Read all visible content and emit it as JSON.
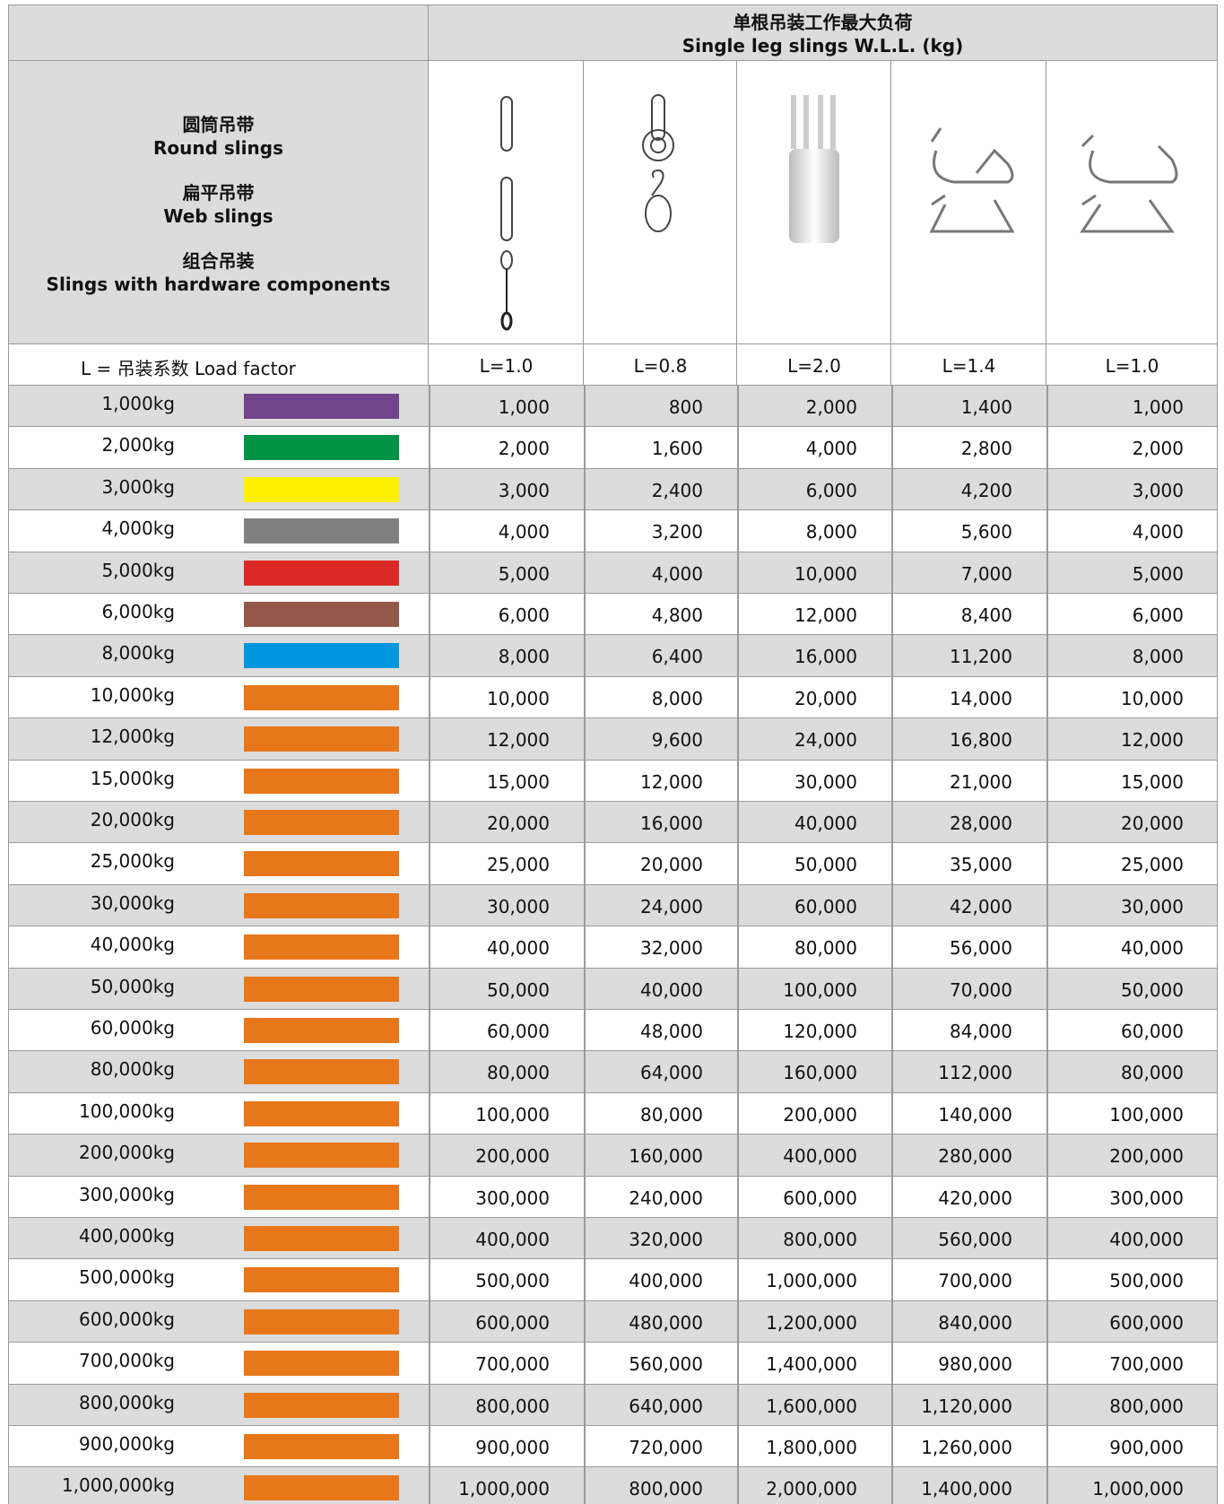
{
  "header": {
    "title_zh": "单根吊装工作最大负荷",
    "title_en": "Single leg slings W.L.L. (kg)"
  },
  "sling_types": [
    {
      "zh": "圆筒吊带",
      "en": "Round slings"
    },
    {
      "zh": "扁平吊带",
      "en": "Web slings"
    },
    {
      "zh": "组合吊装",
      "en": "Slings with hardware components"
    }
  ],
  "load_factor": {
    "label": "L = 吊装系数 Load factor",
    "values": [
      "L=1.0",
      "L=0.8",
      "L=2.0",
      "L=1.4",
      "L=1.0"
    ]
  },
  "rows": [
    {
      "label": "1,000kg",
      "color": "#71448c",
      "values": [
        "1,000",
        "800",
        "2,000",
        "1,400",
        "1,000"
      ]
    },
    {
      "label": "2,000kg",
      "color": "#009245",
      "values": [
        "2,000",
        "1,600",
        "4,000",
        "2,800",
        "2,000"
      ]
    },
    {
      "label": "3,000kg",
      "color": "#fff200",
      "values": [
        "3,000",
        "2,400",
        "6,000",
        "4,200",
        "3,000"
      ]
    },
    {
      "label": "4,000kg",
      "color": "#808080",
      "values": [
        "4,000",
        "3,200",
        "8,000",
        "5,600",
        "4,000"
      ]
    },
    {
      "label": "5,000kg",
      "color": "#db2a25",
      "values": [
        "5,000",
        "4,000",
        "10,000",
        "7,000",
        "5,000"
      ]
    },
    {
      "label": "6,000kg",
      "color": "#94584a",
      "values": [
        "6,000",
        "4,800",
        "12,000",
        "8,400",
        "6,000"
      ]
    },
    {
      "label": "8,000kg",
      "color": "#0096df",
      "values": [
        "8,000",
        "6,400",
        "16,000",
        "11,200",
        "8,000"
      ]
    },
    {
      "label": "10,000kg",
      "color": "#e8771a",
      "values": [
        "10,000",
        "8,000",
        "20,000",
        "14,000",
        "10,000"
      ]
    },
    {
      "label": "12,000kg",
      "color": "#e8771a",
      "values": [
        "12,000",
        "9,600",
        "24,000",
        "16,800",
        "12,000"
      ]
    },
    {
      "label": "15,000kg",
      "color": "#e8771a",
      "values": [
        "15,000",
        "12,000",
        "30,000",
        "21,000",
        "15,000"
      ]
    },
    {
      "label": "20,000kg",
      "color": "#e8771a",
      "values": [
        "20,000",
        "16,000",
        "40,000",
        "28,000",
        "20,000"
      ]
    },
    {
      "label": "25,000kg",
      "color": "#e8771a",
      "values": [
        "25,000",
        "20,000",
        "50,000",
        "35,000",
        "25,000"
      ]
    },
    {
      "label": "30,000kg",
      "color": "#e8771a",
      "values": [
        "30,000",
        "24,000",
        "60,000",
        "42,000",
        "30,000"
      ]
    },
    {
      "label": "40,000kg",
      "color": "#e8771a",
      "values": [
        "40,000",
        "32,000",
        "80,000",
        "56,000",
        "40,000"
      ]
    },
    {
      "label": "50,000kg",
      "color": "#e8771a",
      "values": [
        "50,000",
        "40,000",
        "100,000",
        "70,000",
        "50,000"
      ]
    },
    {
      "label": "60,000kg",
      "color": "#e8771a",
      "values": [
        "60,000",
        "48,000",
        "120,000",
        "84,000",
        "60,000"
      ]
    },
    {
      "label": "80,000kg",
      "color": "#e8771a",
      "values": [
        "80,000",
        "64,000",
        "160,000",
        "112,000",
        "80,000"
      ]
    },
    {
      "label": "100,000kg",
      "color": "#e8771a",
      "values": [
        "100,000",
        "80,000",
        "200,000",
        "140,000",
        "100,000"
      ]
    },
    {
      "label": "200,000kg",
      "color": "#e8771a",
      "values": [
        "200,000",
        "160,000",
        "400,000",
        "280,000",
        "200,000"
      ]
    },
    {
      "label": "300,000kg",
      "color": "#e8771a",
      "values": [
        "300,000",
        "240,000",
        "600,000",
        "420,000",
        "300,000"
      ]
    },
    {
      "label": "400,000kg",
      "color": "#e8771a",
      "values": [
        "400,000",
        "320,000",
        "800,000",
        "560,000",
        "400,000"
      ]
    },
    {
      "label": "500,000kg",
      "color": "#e8771a",
      "values": [
        "500,000",
        "400,000",
        "1,000,000",
        "700,000",
        "500,000"
      ]
    },
    {
      "label": "600,000kg",
      "color": "#e8771a",
      "values": [
        "600,000",
        "480,000",
        "1,200,000",
        "840,000",
        "600,000"
      ]
    },
    {
      "label": "700,000kg",
      "color": "#e8771a",
      "values": [
        "700,000",
        "560,000",
        "1,400,000",
        "980,000",
        "700,000"
      ]
    },
    {
      "label": "800,000kg",
      "color": "#e8771a",
      "values": [
        "800,000",
        "640,000",
        "1,600,000",
        "1,120,000",
        "800,000"
      ]
    },
    {
      "label": "900,000kg",
      "color": "#e8771a",
      "values": [
        "900,000",
        "720,000",
        "1,800,000",
        "1,260,000",
        "900,000"
      ]
    },
    {
      "label": "1,000,000kg",
      "color": "#e8771a",
      "values": [
        "1,000,000",
        "800,000",
        "2,000,000",
        "1,400,000",
        "1,000,000"
      ]
    }
  ]
}
